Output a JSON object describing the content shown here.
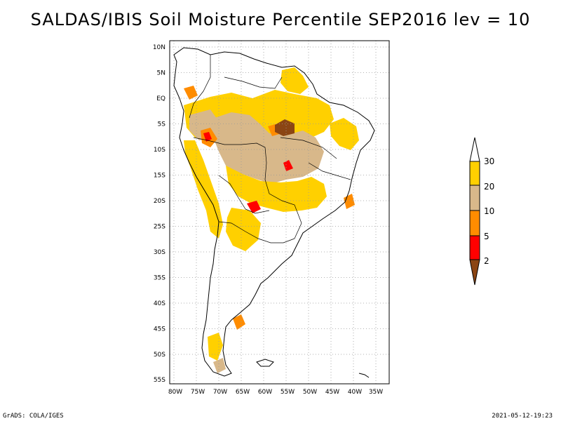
{
  "title": "SALDAS/IBIS Soil Moisture Percentile SEP2016 lev = 10",
  "footer": {
    "left": "GrADS: COLA/IGES",
    "right": "2021-05-12-19:23"
  },
  "axes": {
    "lat_labels": [
      "10N",
      "5N",
      "EQ",
      "5S",
      "10S",
      "15S",
      "20S",
      "25S",
      "30S",
      "35S",
      "40S",
      "45S",
      "50S",
      "55S"
    ],
    "lon_labels": [
      "80W",
      "75W",
      "70W",
      "65W",
      "60W",
      "55W",
      "50W",
      "45W",
      "40W",
      "35W"
    ]
  },
  "legend": {
    "labels": [
      "30",
      "20",
      "10",
      "5",
      "2"
    ],
    "colors": {
      "above": "#ffffff",
      "c20_30": "#ffd000",
      "c10_20": "#d8b88a",
      "c5_10": "#ff8c00",
      "c2_5": "#ff0000",
      "below": "#8b4513"
    }
  },
  "colors": {
    "yellow": "#ffd000",
    "tan": "#d8b88a",
    "orange": "#ff8c00",
    "red": "#ff0000",
    "brown": "#8b4513",
    "coast": "#000000",
    "grid": "#999999"
  }
}
